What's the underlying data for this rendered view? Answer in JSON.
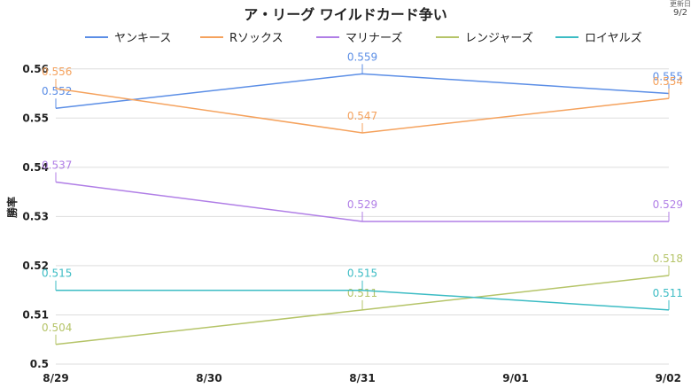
{
  "update": {
    "label": "更新日",
    "date": "9/2"
  },
  "chart_data": {
    "type": "line",
    "title": "ア・リーグ ワイルドカード争い",
    "xlabel": "",
    "ylabel": "勝率",
    "categories": [
      "8/29",
      "8/30",
      "8/31",
      "9/01",
      "9/02"
    ],
    "ylim": [
      0.5,
      0.565
    ],
    "yticks": [
      "0.56",
      "0.55",
      "0.54",
      "0.53",
      "0.52",
      "0.51",
      "0.5"
    ],
    "grid": true,
    "legend": "top",
    "series": [
      {
        "name": "ヤンキース",
        "color": "#5b8ee6",
        "points": [
          {
            "x": "8/29",
            "y": 0.552,
            "label": "0.552"
          },
          {
            "x": "8/31",
            "y": 0.559,
            "label": "0.559"
          },
          {
            "x": "9/02",
            "y": 0.555,
            "label": "0.555"
          }
        ]
      },
      {
        "name": "Rソックス",
        "color": "#f5a25d",
        "points": [
          {
            "x": "8/29",
            "y": 0.556,
            "label": "0.556"
          },
          {
            "x": "8/31",
            "y": 0.547,
            "label": "0.547"
          },
          {
            "x": "9/02",
            "y": 0.554,
            "label": "0.554"
          }
        ]
      },
      {
        "name": "マリナーズ",
        "color": "#b07ee6",
        "points": [
          {
            "x": "8/29",
            "y": 0.537,
            "label": "0.537"
          },
          {
            "x": "8/31",
            "y": 0.529,
            "label": "0.529"
          },
          {
            "x": "9/02",
            "y": 0.529,
            "label": "0.529"
          }
        ]
      },
      {
        "name": "レンジャーズ",
        "color": "#b5c468",
        "points": [
          {
            "x": "8/29",
            "y": 0.504,
            "label": "0.504"
          },
          {
            "x": "8/31",
            "y": 0.511,
            "label": "0.511"
          },
          {
            "x": "9/02",
            "y": 0.518,
            "label": "0.518"
          }
        ]
      },
      {
        "name": "ロイヤルズ",
        "color": "#3cbcc4",
        "points": [
          {
            "x": "8/29",
            "y": 0.515,
            "label": "0.515"
          },
          {
            "x": "8/31",
            "y": 0.515,
            "label": "0.515"
          },
          {
            "x": "9/02",
            "y": 0.511,
            "label": "0.511"
          }
        ]
      }
    ]
  }
}
